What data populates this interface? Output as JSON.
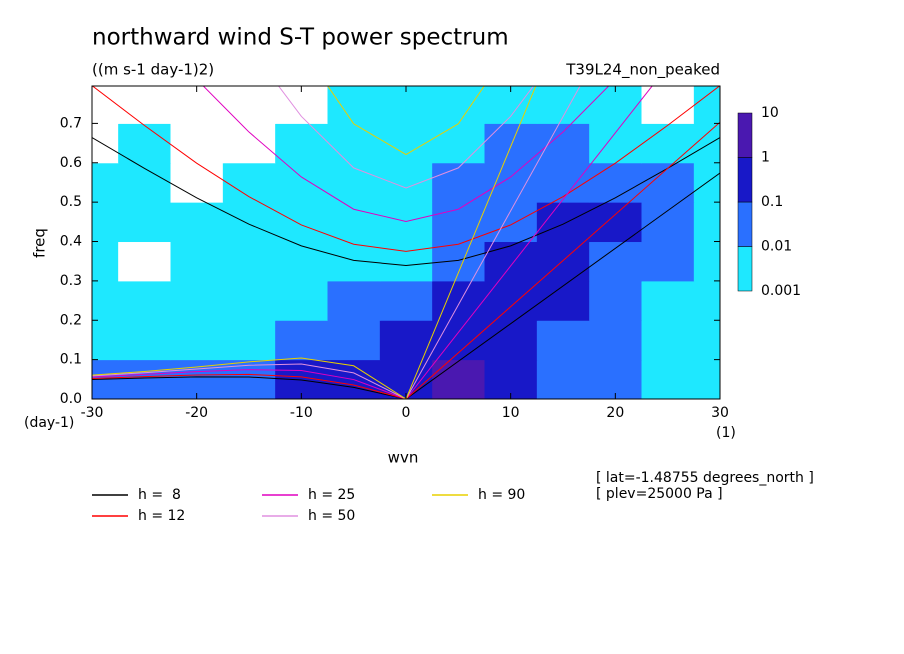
{
  "chart_data": {
    "type": "contour",
    "title": "northward wind S-T power spectrum",
    "subtitle": "((m s-1 day-1)2)",
    "run_label": "T39L24_non_peaked",
    "xlabel": "wvn",
    "ylabel": "freq",
    "x_unit": "(1)",
    "y_unit": "(day-1)",
    "annotations": [
      "[ lat=-1.48755 degrees_north ]",
      "[ plev=25000 Pa ]"
    ],
    "xlim": [
      -30,
      30
    ],
    "ylim": [
      0,
      0.795
    ],
    "xticks": [
      -30,
      -20,
      -10,
      0,
      10,
      20,
      30
    ],
    "yticks": [
      {
        "value": 0,
        "label": "0.0"
      },
      0.1,
      0.2,
      0.3,
      0.4,
      0.5,
      0.6,
      0.7
    ],
    "grid": false,
    "x": [
      -30,
      -25,
      -20,
      -15,
      -10,
      -5,
      0,
      5,
      10,
      15,
      20,
      25,
      30
    ],
    "y": [
      0.05,
      0.15,
      0.25,
      0.35,
      0.45,
      0.55,
      0.65,
      0.75
    ],
    "z": [
      [
        0.01,
        0.01,
        0.01,
        0.01,
        0.1,
        0.1,
        0.1,
        1,
        0.1,
        0.01,
        0.01,
        0.001,
        0.001
      ],
      [
        0.001,
        0.001,
        0.001,
        0.001,
        0.01,
        0.01,
        0.1,
        0.1,
        0.1,
        0.01,
        0.01,
        0.001,
        0.001
      ],
      [
        0.001,
        0.001,
        0.001,
        0.001,
        0.001,
        0.01,
        0.01,
        0.1,
        0.1,
        0.1,
        0.01,
        0.001,
        0.001
      ],
      [
        0.001,
        0.0001,
        0.001,
        0.001,
        0.001,
        0.001,
        0.001,
        0.01,
        0.1,
        0.1,
        0.01,
        0.01,
        0.001
      ],
      [
        0.001,
        0.001,
        0.001,
        0.001,
        0.001,
        0.001,
        0.001,
        0.01,
        0.01,
        0.1,
        0.1,
        0.01,
        0.001
      ],
      [
        0.001,
        0.001,
        0.0001,
        0.001,
        0.001,
        0.001,
        0.001,
        0.01,
        0.01,
        0.01,
        0.01,
        0.01,
        0.001
      ],
      [
        0.0001,
        0.001,
        0.0001,
        0.0001,
        0.001,
        0.001,
        0.001,
        0.001,
        0.01,
        0.01,
        0.001,
        0.001,
        0.001
      ],
      [
        0.0001,
        0.0001,
        0.0001,
        0.0001,
        0.0001,
        0.001,
        0.001,
        0.001,
        0.001,
        0.001,
        0.001,
        0.0001,
        0.001
      ]
    ],
    "colorbar": {
      "levels": [
        0.001,
        0.01,
        0.1,
        1,
        10
      ],
      "colors": [
        "#1ee8ff",
        "#2a70ff",
        "#1818c8",
        "#4a18b0"
      ]
    },
    "series": [
      {
        "name": "h =  8",
        "color": "#000000",
        "curves": [
          {
            "x": [
              0,
              30
            ],
            "y": [
              0,
              0.574
            ]
          },
          {
            "x": [
              -30,
              -25,
              -20,
              -15,
              -10,
              -5,
              0,
              5,
              10,
              15,
              20,
              25,
              30
            ],
            "y": [
              0.664,
              0.586,
              0.511,
              0.444,
              0.389,
              0.352,
              0.339,
              0.352,
              0.389,
              0.444,
              0.511,
              0.586,
              0.664
            ]
          },
          {
            "x": [
              -30,
              -25,
              -20,
              -15,
              -10,
              -5,
              0
            ],
            "y": [
              0.0495,
              0.0534,
              0.0562,
              0.0558,
              0.0484,
              0.0296,
              0
            ]
          }
        ]
      },
      {
        "name": "h = 12",
        "color": "#ff0000",
        "curves": [
          {
            "x": [
              0,
              30
            ],
            "y": [
              0,
              0.703
            ]
          },
          {
            "x": [
              -30,
              -25,
              -20,
              -15,
              -10,
              -5,
              0,
              5,
              10,
              15,
              20,
              25,
              30
            ],
            "y": [
              0.796,
              0.695,
              0.599,
              0.514,
              0.442,
              0.393,
              0.375,
              0.393,
              0.442,
              0.514,
              0.599,
              0.695,
              0.796
            ]
          },
          {
            "x": [
              -30,
              -25,
              -20,
              -15,
              -10,
              -5,
              0
            ],
            "y": [
              0.052,
              0.0569,
              0.0611,
              0.0624,
              0.0563,
              0.0356,
              0
            ]
          }
        ]
      },
      {
        "name": "h = 25",
        "color": "#e000c0",
        "curves": [
          {
            "x": [
              0,
              30
            ],
            "y": [
              0,
              1.014
            ]
          },
          {
            "x": [
              -20,
              -15,
              -10,
              -5,
              0,
              5,
              10,
              15,
              20
            ],
            "y": [
              0.812,
              0.678,
              0.564,
              0.482,
              0.451,
              0.482,
              0.564,
              0.678,
              0.812
            ]
          },
          {
            "x": [
              -30,
              -25,
              -20,
              -15,
              -10,
              -5,
              0
            ],
            "y": [
              0.0558,
              0.0625,
              0.0694,
              0.0746,
              0.0723,
              0.0494,
              0
            ]
          }
        ]
      },
      {
        "name": "h = 50",
        "color": "#e090e0",
        "curves": [
          {
            "x": [
              0,
              30
            ],
            "y": [
              0,
              1.434
            ]
          },
          {
            "x": [
              -15,
              -10,
              -5,
              0,
              5,
              10,
              15
            ],
            "y": [
              0.895,
              0.718,
              0.587,
              0.536,
              0.587,
              0.718,
              0.895
            ]
          },
          {
            "x": [
              -30,
              -25,
              -20,
              -15,
              -10,
              -5,
              0
            ],
            "y": [
              0.0586,
              0.0668,
              0.0762,
              0.0856,
              0.0889,
              0.0663,
              0
            ]
          }
        ]
      },
      {
        "name": "h = 90",
        "color": "#e8d000",
        "curves": [
          {
            "x": [
              0,
              30
            ],
            "y": [
              0,
              1.923
            ]
          },
          {
            "x": [
              -10,
              -5,
              0,
              5,
              10
            ],
            "y": [
              0.893,
              0.699,
              0.621,
              0.699,
              0.893
            ]
          },
          {
            "x": [
              -30,
              -25,
              -20,
              -15,
              -10,
              -5,
              0
            ],
            "y": [
              0.0605,
              0.0699,
              0.0813,
              0.0943,
              0.104,
              0.0844,
              0
            ]
          }
        ]
      }
    ]
  }
}
